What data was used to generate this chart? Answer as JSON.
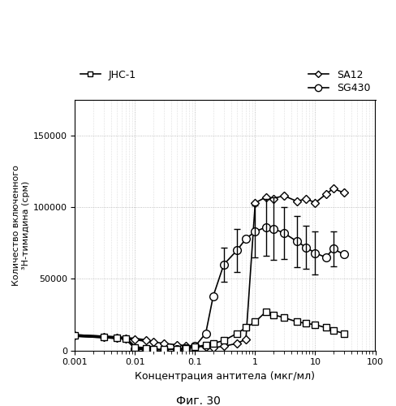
{
  "xlabel": "Концентрация антитела (мкг/мл)",
  "ylabel": "Количество включенного\n³H-тимидина (срм)",
  "caption": "Фиг. 30",
  "xlim": [
    0.001,
    100
  ],
  "ylim": [
    0,
    175000
  ],
  "yticks": [
    0,
    50000,
    100000,
    150000
  ],
  "SA12": {
    "x": [
      0.001,
      0.003,
      0.005,
      0.007,
      0.01,
      0.015,
      0.02,
      0.03,
      0.05,
      0.07,
      0.1,
      0.15,
      0.2,
      0.3,
      0.5,
      0.7,
      1.0,
      1.5,
      2.0,
      3.0,
      5.0,
      7.0,
      10.0,
      15.0,
      20.0,
      30.0
    ],
    "y": [
      10500,
      9500,
      9000,
      8500,
      8000,
      7000,
      6000,
      5000,
      4000,
      3500,
      3000,
      2500,
      2000,
      3000,
      5000,
      8000,
      103000,
      107000,
      106000,
      108000,
      104000,
      106000,
      103000,
      109000,
      113000,
      110000
    ],
    "label": "SA12",
    "marker": "D",
    "markersize": 5
  },
  "SG430": {
    "x": [
      0.01,
      0.015,
      0.02,
      0.03,
      0.05,
      0.07,
      0.1,
      0.15,
      0.2,
      0.3,
      0.5,
      0.7,
      1.0,
      1.5,
      2.0,
      3.0,
      5.0,
      7.0,
      10.0,
      15.0,
      20.0,
      30.0
    ],
    "y": [
      1000,
      500,
      500,
      500,
      1000,
      1500,
      3000,
      12000,
      38000,
      60000,
      70000,
      78000,
      83000,
      86000,
      85000,
      82000,
      76000,
      72000,
      68000,
      65000,
      71000,
      67000
    ],
    "yerr": [
      null,
      null,
      null,
      null,
      null,
      null,
      null,
      null,
      null,
      12000,
      15000,
      null,
      18000,
      20000,
      22000,
      18000,
      18000,
      15000,
      15000,
      null,
      12000,
      null
    ],
    "label": "SG430",
    "marker": "o",
    "markersize": 7
  },
  "JHC1": {
    "x": [
      0.001,
      0.003,
      0.005,
      0.007,
      0.01,
      0.015,
      0.02,
      0.03,
      0.05,
      0.07,
      0.1,
      0.15,
      0.2,
      0.3,
      0.5,
      0.7,
      1.0,
      1.5,
      2.0,
      3.0,
      5.0,
      7.0,
      10.0,
      15.0,
      20.0,
      30.0
    ],
    "y": [
      10500,
      9500,
      9000,
      8500,
      2000,
      1500,
      1000,
      800,
      1000,
      1500,
      2500,
      4000,
      5000,
      7000,
      12000,
      16000,
      20000,
      27000,
      25000,
      23000,
      20000,
      19000,
      18000,
      16000,
      14000,
      12000
    ],
    "label": "JHC-1",
    "marker": "s",
    "markersize": 6
  },
  "background_color": "#ffffff",
  "grid_color": "#999999"
}
